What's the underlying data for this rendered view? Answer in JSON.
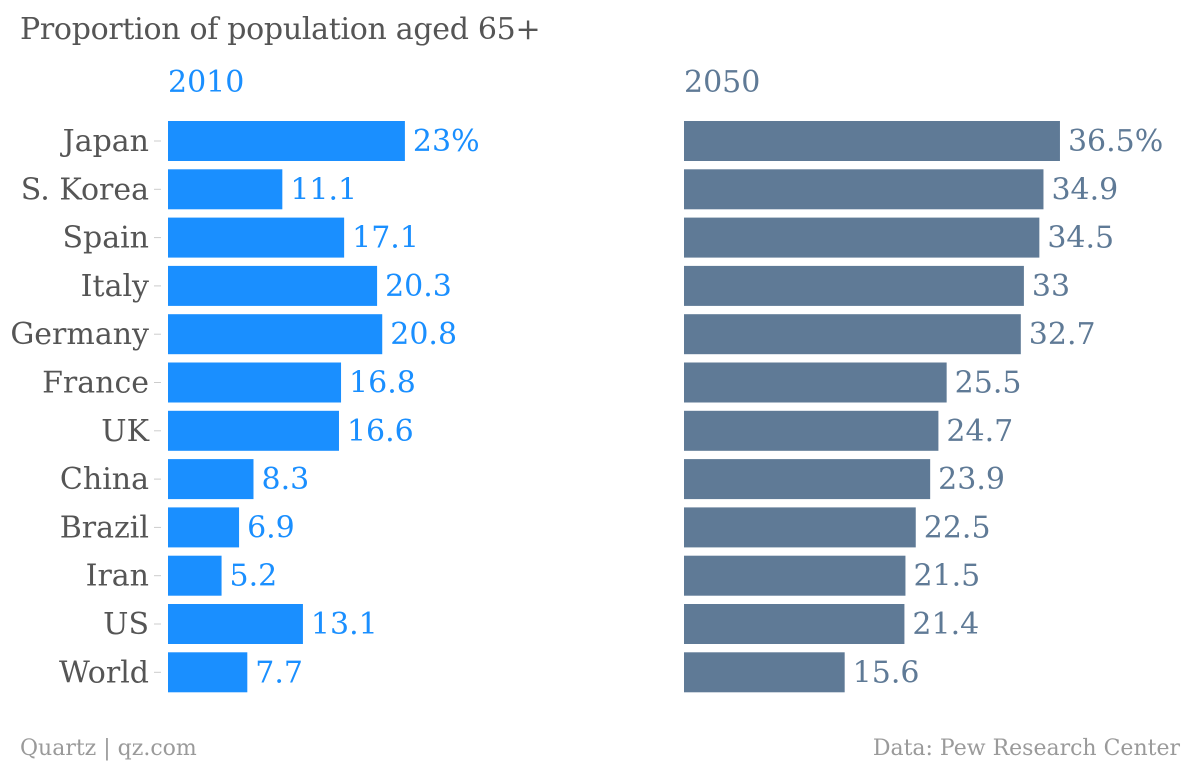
{
  "chart_data": {
    "type": "bar",
    "orientation": "horizontal",
    "title": "Proportion of population aged 65+",
    "categories": [
      "Japan",
      "S. Korea",
      "Spain",
      "Italy",
      "Germany",
      "France",
      "UK",
      "China",
      "Brazil",
      "Iran",
      "US",
      "World"
    ],
    "series": [
      {
        "name": "2010",
        "color": "#1a8fff",
        "values": [
          23,
          11.1,
          17.1,
          20.3,
          20.8,
          16.8,
          16.6,
          8.3,
          6.9,
          5.2,
          13.1,
          7.7
        ],
        "labels": [
          "23%",
          "11.1",
          "17.1",
          "20.3",
          "20.8",
          "16.8",
          "16.6",
          "8.3",
          "6.9",
          "5.2",
          "13.1",
          "7.7"
        ]
      },
      {
        "name": "2050",
        "color": "#5f7a96",
        "values": [
          36.5,
          34.9,
          34.5,
          33,
          32.7,
          25.5,
          24.7,
          23.9,
          22.5,
          21.5,
          21.4,
          15.6
        ],
        "labels": [
          "36.5%",
          "34.9",
          "34.5",
          "33",
          "32.7",
          "25.5",
          "24.7",
          "23.9",
          "22.5",
          "21.5",
          "21.4",
          "15.6"
        ]
      }
    ],
    "xlim": [
      0,
      40
    ],
    "grid": false,
    "legend": "none"
  },
  "footer": {
    "source_left": "Quartz | qz.com",
    "source_right": "Data: Pew Research Center"
  },
  "colors": {
    "label_text": "#555555",
    "footer_text": "#9a9a9a"
  }
}
